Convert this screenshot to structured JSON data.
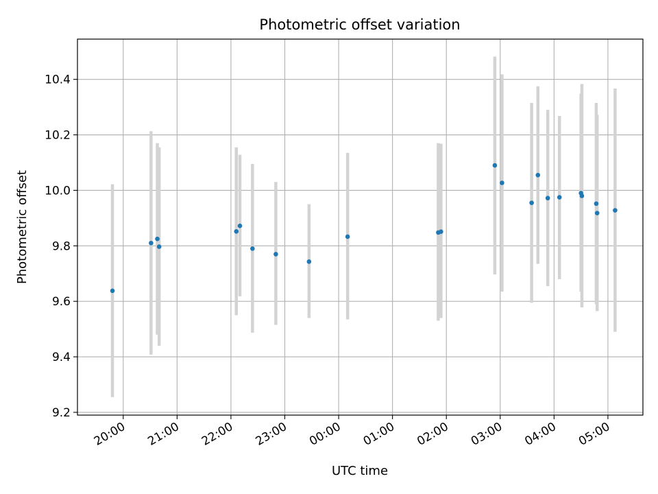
{
  "chart_data": {
    "type": "scatter",
    "title": "Photometric offset variation",
    "xlabel": "UTC time",
    "ylabel": "Photometric offset",
    "x_unit": "UTC time of night (hh:mm), starting evening 19:xx through morning 05:xx",
    "xlim": [
      "19:09",
      "05:39"
    ],
    "ylim": [
      9.19,
      10.545
    ],
    "x_ticks": [
      "20:00",
      "21:00",
      "22:00",
      "23:00",
      "00:00",
      "01:00",
      "02:00",
      "03:00",
      "04:00",
      "05:00"
    ],
    "y_ticks": [
      "9.2",
      "9.4",
      "9.6",
      "9.8",
      "10.0",
      "10.2",
      "10.4"
    ],
    "grid": true,
    "errorbar_color": "#d3d3d3",
    "marker_color": "#1f77b4",
    "series": [
      {
        "points": [
          {
            "x": "19:48",
            "y": 9.638,
            "ylo": 9.255,
            "yhi": 10.022
          },
          {
            "x": "20:31",
            "y": 9.81,
            "ylo": 9.408,
            "yhi": 10.213
          },
          {
            "x": "20:38",
            "y": 9.825,
            "ylo": 9.48,
            "yhi": 10.17
          },
          {
            "x": "20:40",
            "y": 9.797,
            "ylo": 9.44,
            "yhi": 10.155
          },
          {
            "x": "22:06",
            "y": 9.852,
            "ylo": 9.55,
            "yhi": 10.155
          },
          {
            "x": "22:10",
            "y": 9.872,
            "ylo": 9.618,
            "yhi": 10.128
          },
          {
            "x": "22:24",
            "y": 9.79,
            "ylo": 9.487,
            "yhi": 10.095
          },
          {
            "x": "22:50",
            "y": 9.77,
            "ylo": 9.515,
            "yhi": 10.03
          },
          {
            "x": "23:27",
            "y": 9.743,
            "ylo": 9.54,
            "yhi": 9.95
          },
          {
            "x": "00:10",
            "y": 9.833,
            "ylo": 9.535,
            "yhi": 10.135
          },
          {
            "x": "01:51",
            "y": 9.848,
            "ylo": 9.53,
            "yhi": 10.17
          },
          {
            "x": "01:54",
            "y": 9.851,
            "ylo": 9.54,
            "yhi": 10.168
          },
          {
            "x": "02:54",
            "y": 10.09,
            "ylo": 9.697,
            "yhi": 10.482
          },
          {
            "x": "03:02",
            "y": 10.027,
            "ylo": 9.635,
            "yhi": 10.418
          },
          {
            "x": "03:35",
            "y": 9.955,
            "ylo": 9.595,
            "yhi": 10.315
          },
          {
            "x": "03:42",
            "y": 10.055,
            "ylo": 9.735,
            "yhi": 10.375
          },
          {
            "x": "03:53",
            "y": 9.972,
            "ylo": 9.655,
            "yhi": 10.29
          },
          {
            "x": "04:06",
            "y": 9.975,
            "ylo": 9.68,
            "yhi": 10.268
          },
          {
            "x": "04:30",
            "y": 9.99,
            "ylo": 9.635,
            "yhi": 10.348
          },
          {
            "x": "04:31",
            "y": 9.98,
            "ylo": 9.578,
            "yhi": 10.383
          },
          {
            "x": "04:47",
            "y": 9.952,
            "ylo": 9.59,
            "yhi": 10.315
          },
          {
            "x": "04:48",
            "y": 9.918,
            "ylo": 9.565,
            "yhi": 10.272
          },
          {
            "x": "05:08",
            "y": 9.928,
            "ylo": 9.49,
            "yhi": 10.367
          }
        ]
      }
    ]
  }
}
